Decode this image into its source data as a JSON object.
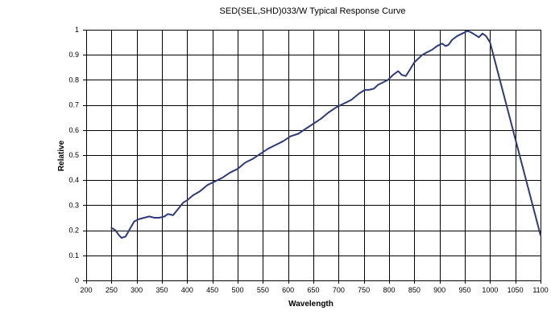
{
  "chart_data": {
    "type": "line",
    "title": "SED(SEL,SHD)033/W Typical Response Curve",
    "xlabel": "Wavelength",
    "ylabel": "Relative",
    "xlim": [
      200,
      1100
    ],
    "ylim": [
      0,
      1
    ],
    "x_ticks": [
      200,
      250,
      300,
      350,
      400,
      450,
      500,
      550,
      600,
      650,
      700,
      750,
      800,
      850,
      900,
      950,
      1000,
      1050,
      1100
    ],
    "y_ticks": [
      0,
      0.1,
      0.2,
      0.3,
      0.4,
      0.5,
      0.6,
      0.7,
      0.8,
      0.9,
      1
    ],
    "grid": true,
    "legend": "none",
    "line_color": "#2e3a7a",
    "series": [
      {
        "x": [
          250,
          258,
          265,
          270,
          278,
          285,
          295,
          305,
          315,
          325,
          335,
          345,
          355,
          362,
          372,
          382,
          392,
          400,
          412,
          425,
          440,
          455,
          470,
          485,
          500,
          515,
          530,
          545,
          560,
          575,
          590,
          605,
          620,
          635,
          650,
          665,
          680,
          695,
          710,
          725,
          740,
          752,
          760,
          770,
          778,
          788,
          798,
          808,
          818,
          825,
          833,
          841,
          850,
          858,
          866,
          875,
          885,
          895,
          905,
          912,
          918,
          925,
          935,
          945,
          955,
          962,
          970,
          978,
          985,
          992,
          1000,
          1100
        ],
        "y": [
          0.21,
          0.2,
          0.18,
          0.17,
          0.175,
          0.2,
          0.235,
          0.245,
          0.25,
          0.255,
          0.25,
          0.25,
          0.255,
          0.265,
          0.26,
          0.285,
          0.31,
          0.32,
          0.34,
          0.355,
          0.38,
          0.395,
          0.41,
          0.43,
          0.445,
          0.47,
          0.485,
          0.505,
          0.525,
          0.54,
          0.555,
          0.575,
          0.585,
          0.605,
          0.625,
          0.645,
          0.67,
          0.69,
          0.705,
          0.72,
          0.745,
          0.76,
          0.76,
          0.765,
          0.78,
          0.79,
          0.8,
          0.82,
          0.835,
          0.82,
          0.815,
          0.84,
          0.87,
          0.885,
          0.9,
          0.91,
          0.92,
          0.935,
          0.945,
          0.935,
          0.94,
          0.96,
          0.975,
          0.985,
          0.995,
          0.99,
          0.98,
          0.97,
          0.985,
          0.975,
          0.95,
          0.18
        ]
      }
    ]
  }
}
